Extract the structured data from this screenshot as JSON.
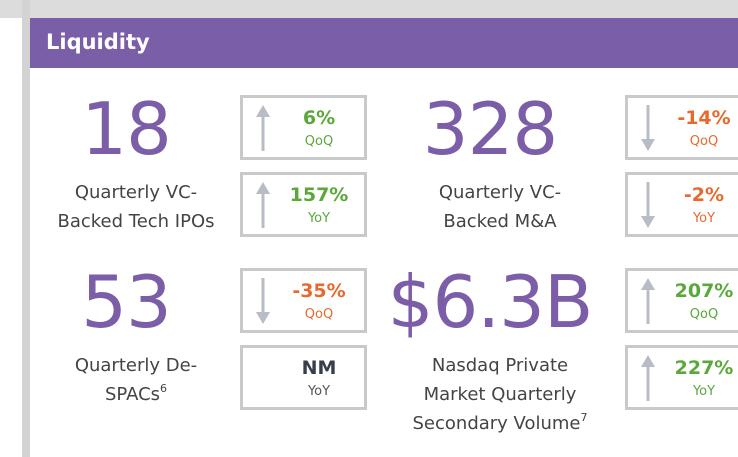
{
  "header": {
    "title": "Liquidity"
  },
  "metrics": [
    {
      "value": "18",
      "label": [
        "Quarterly VC-",
        "Backed Tech IPOs"
      ],
      "changes": [
        {
          "value": "6%",
          "period": "QoQ",
          "direction": "up",
          "color": "#5aa83a"
        },
        {
          "value": "157%",
          "period": "YoY",
          "direction": "up",
          "color": "#5aa83a"
        }
      ]
    },
    {
      "value": "328",
      "label": [
        "Quarterly VC-",
        "Backed M&A"
      ],
      "changes": [
        {
          "value": "-14%",
          "period": "QoQ",
          "direction": "down",
          "color": "#e8692e"
        },
        {
          "value": "-2%",
          "period": "YoY",
          "direction": "down",
          "color": "#e8692e"
        }
      ]
    },
    {
      "value": "53",
      "label": [
        "Quarterly De-",
        "SPACs"
      ],
      "footnote": "6",
      "changes": [
        {
          "value": "-35%",
          "period": "QoQ",
          "direction": "down",
          "color": "#e8692e"
        },
        {
          "value": "NM",
          "period": "YoY",
          "direction": "none",
          "color": "#3a3d4a"
        }
      ]
    },
    {
      "value": "$6.3B",
      "label": [
        "Nasdaq Private",
        "Market Quarterly",
        "Secondary Volume"
      ],
      "footnote": "7",
      "changes": [
        {
          "value": "207%",
          "period": "QoQ",
          "direction": "up",
          "color": "#5aa83a"
        },
        {
          "value": "227%",
          "period": "YoY",
          "direction": "up",
          "color": "#5aa83a"
        }
      ]
    }
  ]
}
